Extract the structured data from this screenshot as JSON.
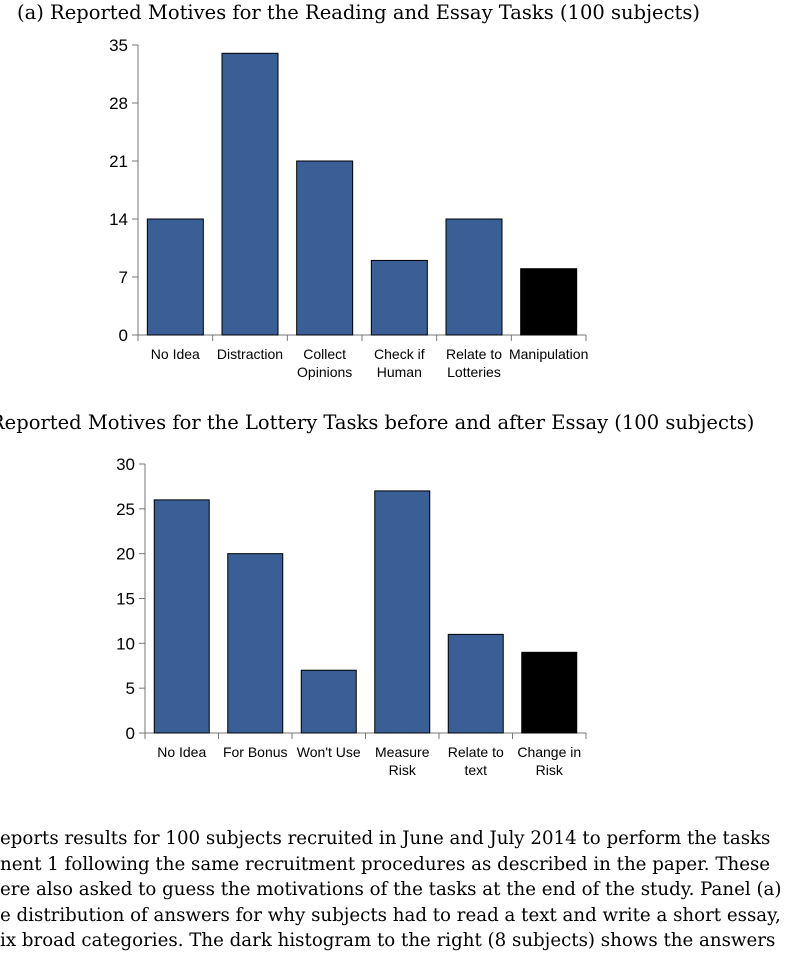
{
  "chart_data": [
    {
      "type": "bar",
      "title": "(a) Reported Motives for the Reading and Essay Tasks (100 subjects)",
      "categories": [
        [
          "No Idea"
        ],
        [
          "Distraction"
        ],
        [
          "Collect",
          "Opinions"
        ],
        [
          "Check if",
          "Human"
        ],
        [
          "Relate to",
          "Lotteries"
        ],
        [
          "Manipulation"
        ]
      ],
      "values": [
        14,
        34,
        21,
        9,
        14,
        8
      ],
      "bar_colors": [
        "#3a5f96",
        "#3a5f96",
        "#3a5f96",
        "#3a5f96",
        "#3a5f96",
        "#000000"
      ],
      "ylim": [
        0,
        35
      ],
      "yticks": [
        0,
        7,
        14,
        21,
        28,
        35
      ],
      "grid": false
    },
    {
      "type": "bar",
      "title": "Reported Motives for the Lottery Tasks before and after Essay (100 subjects)",
      "categories": [
        [
          "No Idea"
        ],
        [
          "For Bonus"
        ],
        [
          "Won't Use"
        ],
        [
          "Measure",
          "Risk"
        ],
        [
          "Relate to",
          "text"
        ],
        [
          "Change in",
          "Risk"
        ]
      ],
      "values": [
        26,
        20,
        7,
        27,
        11,
        9
      ],
      "bar_colors": [
        "#3a5f96",
        "#3a5f96",
        "#3a5f96",
        "#3a5f96",
        "#3a5f96",
        "#000000"
      ],
      "ylim": [
        0,
        30
      ],
      "yticks": [
        0,
        5,
        10,
        15,
        20,
        25,
        30
      ],
      "grid": false
    }
  ],
  "caption": {
    "lines": [
      "eports results for 100 subjects recruited in June and July 2014 to perform the tasks",
      "nent 1 following the same recruitment procedures as described in the paper.  These",
      "ere also asked to guess the motivations of the tasks at the end of the study. Panel (a)",
      "e distribution of answers for why subjects had to read a text and write a short essay,",
      "ix broad categories. The dark histogram to the right (8 subjects) shows the answers"
    ]
  }
}
